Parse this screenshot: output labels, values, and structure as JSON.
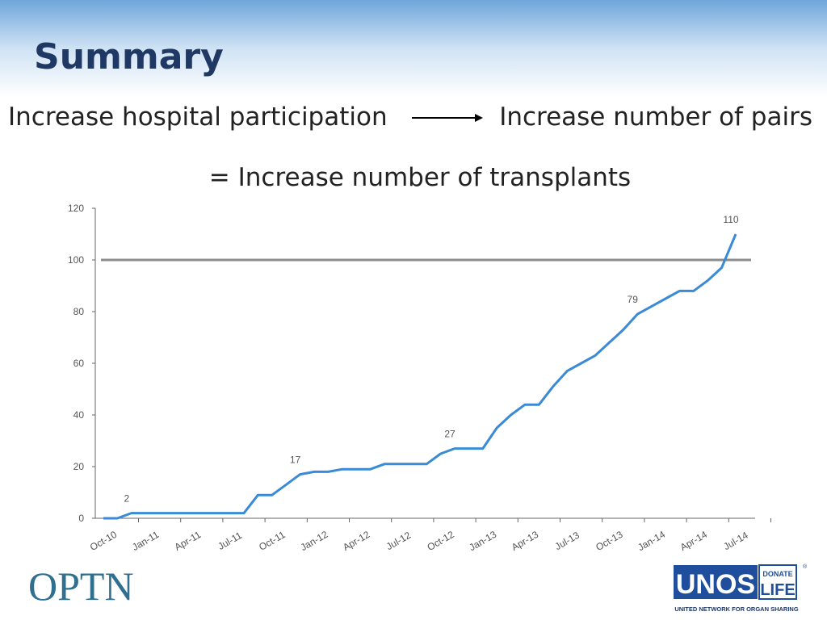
{
  "header": {
    "title": "Summary"
  },
  "statement": {
    "left": "Increase hospital participation",
    "right": "Increase number of pairs",
    "result": "= Increase number of transplants"
  },
  "chart_data": {
    "type": "line",
    "categories": [
      "Oct-10",
      null,
      null,
      "Jan-11",
      null,
      null,
      "Apr-11",
      null,
      null,
      "Jul-11",
      null,
      null,
      "Oct-11",
      null,
      null,
      "Jan-12",
      null,
      null,
      "Apr-12",
      null,
      null,
      "Jul-12",
      null,
      null,
      "Oct-12",
      null,
      null,
      "Jan-13",
      null,
      null,
      "Apr-13",
      null,
      null,
      "Jul-13",
      null,
      null,
      "Oct-13",
      null,
      null,
      "Jan-14",
      null,
      null,
      "Apr-14",
      null,
      null,
      "Jul-14"
    ],
    "series": [
      {
        "name": "Transplants",
        "color": "#3a8ad6",
        "values": [
          0,
          0,
          2,
          2,
          2,
          2,
          2,
          2,
          2,
          2,
          2,
          9,
          9,
          13,
          17,
          18,
          18,
          19,
          19,
          19,
          21,
          21,
          21,
          21,
          25,
          27,
          27,
          27,
          35,
          40,
          44,
          44,
          51,
          57,
          60,
          63,
          68,
          73,
          79,
          82,
          85,
          88,
          88,
          92,
          97,
          110
        ]
      }
    ],
    "labeled_points": [
      2,
      14,
      25,
      38,
      45
    ],
    "reference_line": {
      "value": 100,
      "color": "#8c8c8c"
    },
    "ylim": [
      0,
      120
    ],
    "yticks": [
      0,
      20,
      40,
      60,
      80,
      100,
      120
    ]
  },
  "footer": {
    "left_logo": "OPTN",
    "unos": "UNOS",
    "donate": "DONATE",
    "life": "LIFE",
    "registered": "®",
    "tagline": "UNITED NETWORK FOR ORGAN SHARING"
  }
}
